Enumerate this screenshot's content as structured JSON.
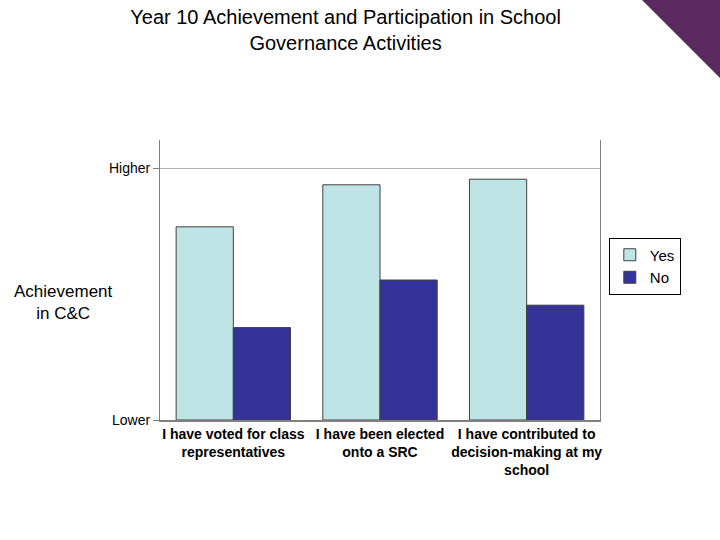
{
  "chart_data": {
    "type": "bar",
    "title": "Year 10 Achievement and Participation in School\nGovernance Activities",
    "y_label": "Achievement\nin C&C",
    "categories": [
      "I have voted for class representatives",
      "I have been elected onto a SRC",
      "I have contributed to decision-making at my school"
    ],
    "series": [
      {
        "name": "Yes",
        "color": "#bfe4e6",
        "values": [
          6.9,
          8.4,
          8.6
        ]
      },
      {
        "name": "No",
        "color": "#333399",
        "values": [
          3.3,
          5.0,
          4.1
        ]
      }
    ],
    "ylim": [
      0,
      10
    ],
    "yticks": [
      {
        "value": 0,
        "label": "Lower"
      },
      {
        "value": 9,
        "label": "Higher"
      }
    ],
    "grid": true,
    "legend": "right"
  }
}
